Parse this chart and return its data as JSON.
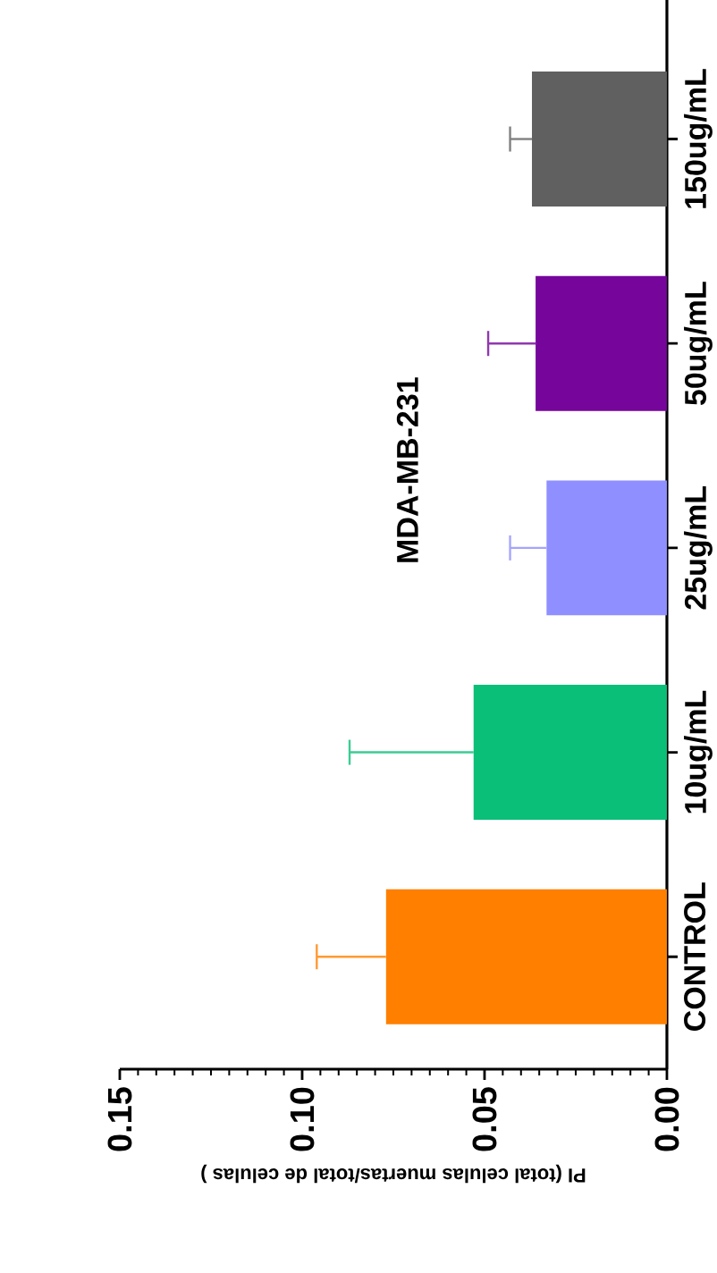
{
  "chart_data": {
    "type": "bar",
    "orientation": "horizontal",
    "title": "MDA-MB-231",
    "xlabel": "PI (total celulas muertas/total de celulas )",
    "categories": [
      "150ug/mL",
      "50ug/mL",
      "25ug/mL",
      "10ug/mL",
      "CONTROL"
    ],
    "values": [
      0.037,
      0.036,
      0.033,
      0.053,
      0.077
    ],
    "colors": [
      "#606060",
      "#76069b",
      "#8f8fff",
      "#0abf78",
      "#ff8000"
    ],
    "errors": [
      [
        0.037,
        0.043
      ],
      [
        0.036,
        0.049
      ],
      [
        0.033,
        0.043
      ],
      [
        0.053,
        0.087
      ],
      [
        0.077,
        0.096
      ]
    ],
    "xlim": [
      0.15,
      0
    ],
    "xticks": [
      {
        "value": 0,
        "label": "0.00"
      },
      {
        "value": 0.005,
        "label": null
      },
      {
        "value": 0.01,
        "label": null
      },
      {
        "value": 0.015,
        "label": null
      },
      {
        "value": 0.02,
        "label": null
      },
      {
        "value": 0.025,
        "label": null
      },
      {
        "value": 0.03,
        "label": null
      },
      {
        "value": 0.035,
        "label": null
      },
      {
        "value": 0.04,
        "label": null
      },
      {
        "value": 0.045,
        "label": null
      },
      {
        "value": 0.05,
        "label": "0.05"
      },
      {
        "value": 0.055,
        "label": null
      },
      {
        "value": 0.06,
        "label": null
      },
      {
        "value": 0.065,
        "label": null
      },
      {
        "value": 0.07,
        "label": null
      },
      {
        "value": 0.075,
        "label": null
      },
      {
        "value": 0.08,
        "label": null
      },
      {
        "value": 0.085,
        "label": null
      },
      {
        "value": 0.09,
        "label": null
      },
      {
        "value": 0.095,
        "label": null
      },
      {
        "value": 0.1,
        "label": "0.10"
      },
      {
        "value": 0.105,
        "label": null
      },
      {
        "value": 0.11,
        "label": null
      },
      {
        "value": 0.115,
        "label": null
      },
      {
        "value": 0.12,
        "label": null
      },
      {
        "value": 0.125,
        "label": null
      },
      {
        "value": 0.13,
        "label": null
      },
      {
        "value": 0.135,
        "label": null
      },
      {
        "value": 0.14,
        "label": null
      },
      {
        "value": 0.145,
        "label": null
      },
      {
        "value": 0.15,
        "label": "0.15"
      }
    ]
  }
}
